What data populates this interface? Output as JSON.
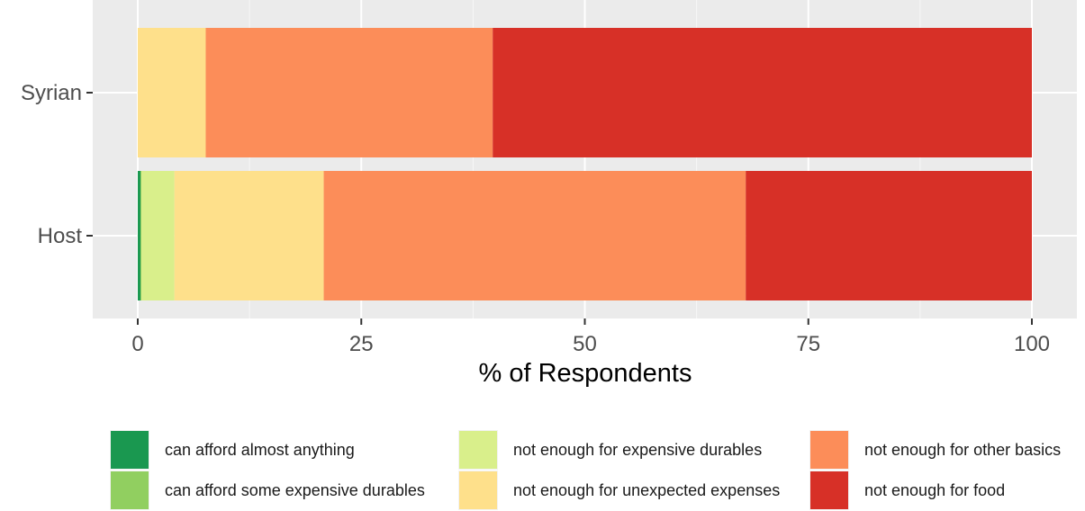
{
  "chart_data": {
    "type": "bar",
    "orientation": "horizontal",
    "stacked": true,
    "categories": [
      "Syrian",
      "Host"
    ],
    "series": [
      {
        "name": "can afford almost anything",
        "color": "#1a9850",
        "values": [
          0,
          0.3
        ]
      },
      {
        "name": "can afford some expensive durables",
        "color": "#91cf60",
        "values": [
          0,
          0.1
        ]
      },
      {
        "name": "not enough for expensive durables",
        "color": "#d9ef8b",
        "values": [
          0,
          3.7
        ]
      },
      {
        "name": "not enough for unexpected expenses",
        "color": "#fee08b",
        "values": [
          7.6,
          16.7
        ]
      },
      {
        "name": "not enough for other basics",
        "color": "#fc8d59",
        "values": [
          32.1,
          47.2
        ]
      },
      {
        "name": "not enough for food",
        "color": "#d73027",
        "values": [
          60.3,
          32.0
        ]
      }
    ],
    "xlabel": "% of Respondents",
    "ylabel": "",
    "xlim": [
      0,
      100
    ],
    "x_ticks": [
      "0",
      "25",
      "50",
      "75",
      "100"
    ],
    "grid": true,
    "panel_background": "#ebebeb",
    "legend_position": "bottom"
  },
  "legend": {
    "items": [
      {
        "label": "can afford almost anything",
        "color": "#1a9850"
      },
      {
        "label": "can afford some expensive durables",
        "color": "#91cf60"
      },
      {
        "label": "not enough for expensive durables",
        "color": "#d9ef8b"
      },
      {
        "label": "not enough for unexpected expenses",
        "color": "#fee08b"
      },
      {
        "label": "not enough for other basics",
        "color": "#fc8d59"
      },
      {
        "label": "not enough for food",
        "color": "#d73027"
      }
    ]
  }
}
